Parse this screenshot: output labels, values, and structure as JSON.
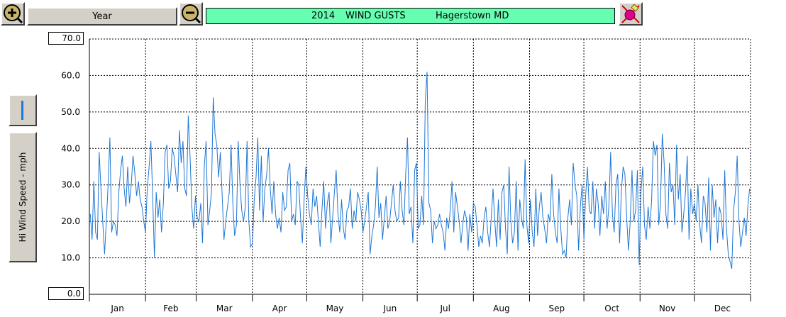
{
  "toolbar": {
    "zoom_in_icon": "zoom-in-icon",
    "zoom_out_icon": "zoom-out-icon",
    "period": "Year",
    "tool_icon": "pin-eraser-icon"
  },
  "header": {
    "year": "2014",
    "title": "WIND GUSTS",
    "location": "Hagerstown MD"
  },
  "side": {
    "line_icon": "line-style-icon",
    "ylabel": "Hi Wind Speed - mph",
    "ymax_field": "70.0",
    "ymin_field": "0.0"
  },
  "colors": {
    "line": "#1f77d4",
    "title_bg": "#66ffb2",
    "grid": "#000000"
  },
  "chart_data": {
    "type": "line",
    "title": "2014   WIND GUSTS   Hagerstown MD",
    "xlabel": "",
    "ylabel": "Hi Wind Speed - mph",
    "ylim": [
      0,
      70
    ],
    "yticks": [
      "0.0",
      "10.0",
      "20.0",
      "30.0",
      "40.0",
      "50.0",
      "60.0",
      "70.0"
    ],
    "xticks": [
      "Jan",
      "Feb",
      "Mar",
      "Apr",
      "May",
      "Jun",
      "Jul",
      "Aug",
      "Sep",
      "Oct",
      "Nov",
      "Dec"
    ],
    "grid": true,
    "unit": "mph",
    "series": [
      {
        "values": [
          22,
          15,
          31,
          17,
          15,
          39,
          29,
          20,
          11,
          20,
          30,
          43,
          17,
          20,
          19,
          16,
          28,
          34,
          38,
          29,
          24,
          35,
          25,
          30,
          38,
          33,
          27,
          31,
          26,
          24,
          20,
          17,
          29,
          35,
          42,
          27,
          10,
          28,
          21,
          26,
          17,
          25,
          39,
          41,
          29,
          31,
          40,
          38,
          33,
          28,
          45,
          36,
          42,
          29,
          27,
          49,
          38,
          24,
          18,
          27,
          21,
          20,
          25,
          14,
          35,
          42,
          19,
          23,
          28,
          54,
          44,
          41,
          32,
          39,
          27,
          15,
          20,
          24,
          28,
          41,
          25,
          16,
          19,
          42,
          30,
          23,
          20,
          24,
          42,
          20,
          13,
          14,
          26,
          32,
          43,
          23,
          38,
          20,
          29,
          33,
          40,
          29,
          22,
          31,
          22,
          18,
          21,
          17,
          28,
          23,
          24,
          34,
          36,
          20,
          22,
          19,
          31,
          30,
          21,
          14,
          26,
          35,
          27,
          22,
          19,
          29,
          24,
          27,
          20,
          13,
          23,
          31,
          18,
          25,
          28,
          14,
          21,
          28,
          34,
          22,
          17,
          26,
          18,
          15,
          23,
          24,
          29,
          18,
          23,
          20,
          28,
          26,
          23,
          17,
          20,
          24,
          28,
          11,
          16,
          19,
          24,
          35,
          21,
          25,
          15,
          21,
          27,
          18,
          20,
          25,
          30,
          23,
          20,
          21,
          31,
          23,
          19,
          33,
          43,
          22,
          24,
          14,
          34,
          36,
          18,
          19,
          27,
          19,
          53,
          61,
          25,
          23,
          14,
          20,
          18,
          19,
          22,
          19,
          17,
          12,
          21,
          18,
          23,
          31,
          17,
          28,
          24,
          20,
          14,
          19,
          23,
          21,
          12,
          22,
          17,
          25,
          24,
          19,
          13,
          16,
          14,
          21,
          24,
          17,
          13,
          21,
          29,
          20,
          13,
          26,
          15,
          28,
          30,
          18,
          11,
          35,
          20,
          14,
          17,
          31,
          12,
          26,
          21,
          18,
          37,
          19,
          14,
          26,
          17,
          13,
          29,
          16,
          24,
          28,
          21,
          18,
          14,
          22,
          20,
          33,
          22,
          17,
          14,
          29,
          18,
          11,
          12,
          10,
          21,
          26,
          19,
          36,
          30,
          27,
          12,
          24,
          30,
          15,
          27,
          35,
          23,
          22,
          31,
          18,
          29,
          25,
          16,
          27,
          22,
          31,
          18,
          24,
          39,
          22,
          17,
          30,
          33,
          14,
          28,
          35,
          33,
          21,
          12,
          20,
          34,
          20,
          23,
          34,
          8,
          28,
          35,
          19,
          15,
          24,
          18,
          26,
          42,
          38,
          41,
          19,
          25,
          44,
          36,
          22,
          18,
          36,
          28,
          30,
          19,
          41,
          26,
          33,
          17,
          22,
          28,
          38,
          15,
          29,
          22,
          25,
          20,
          30,
          19,
          14,
          27,
          25,
          17,
          32,
          12,
          30,
          21,
          26,
          14,
          24,
          22,
          15,
          34,
          18,
          11,
          9,
          7,
          23,
          28,
          38,
          20,
          13,
          17,
          21,
          16,
          24,
          29
        ]
      }
    ]
  }
}
